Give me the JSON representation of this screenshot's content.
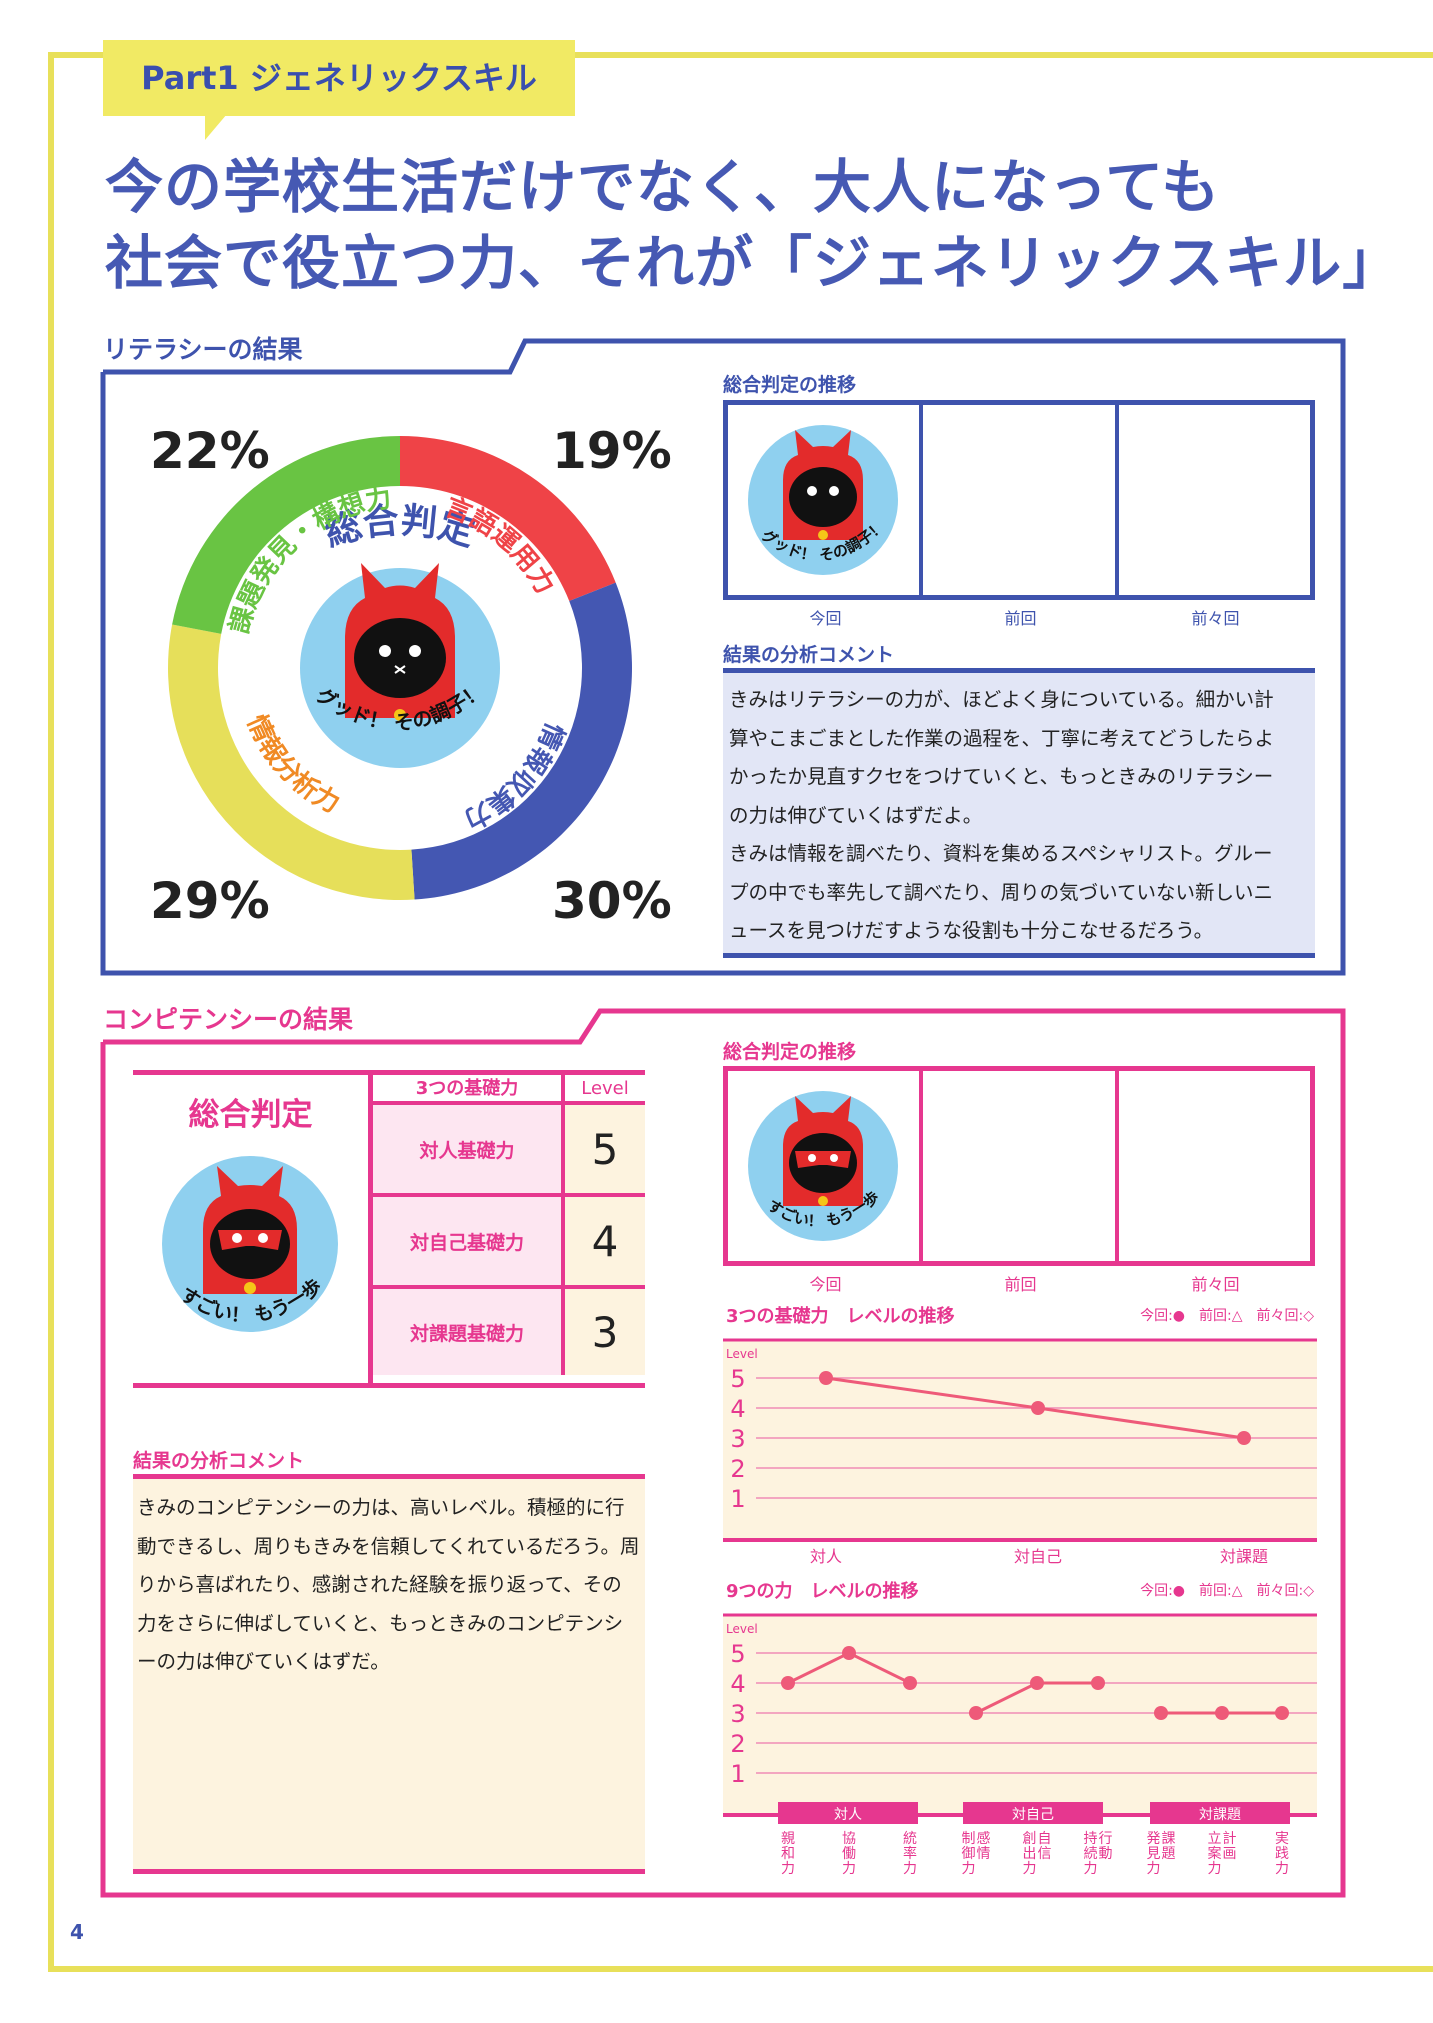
{
  "page": {
    "tab_label": "Part1 ジェネリックスキル",
    "headline_line1": "今の学校生活だけでなく、大人になっても",
    "headline_line2": "社会で役立つ力、それが「ジェネリックスキル」",
    "page_number": "4"
  },
  "colors": {
    "frame_yellow": "#e8e05a",
    "literacy_blue": "#3e53ad",
    "competency_pink": "#e6378f",
    "donut_green": "#69c443",
    "donut_red": "#ef4347",
    "donut_blue": "#4457b2",
    "donut_yellow": "#e6df5a"
  },
  "literacy": {
    "section_title": "リテラシーの結果",
    "donut_center": "総合判定",
    "mascot_caption": "グッド！ その調子！",
    "segments": [
      {
        "label": "言語運用力",
        "percent": "19%",
        "value": 19
      },
      {
        "label": "情報収集力",
        "percent": "30%",
        "value": 30
      },
      {
        "label": "情報分析力",
        "percent": "29%",
        "value": 29
      },
      {
        "label": "課題発見・構想力",
        "percent": "22%",
        "value": 22
      }
    ],
    "trend_title": "総合判定の推移",
    "trend_caption": "グッド！ その調子！",
    "trend_labels": [
      "今回",
      "前回",
      "前々回"
    ],
    "comment_title": "結果の分析コメント",
    "comment_lines": [
      "きみはリテラシーの力が、ほどよく身についている。細かい計",
      "算やこまごまとした作業の過程を、丁寧に考えてどうしたらよ",
      "かったか見直すクセをつけていくと、もっときみのリテラシー",
      "の力は伸びていくはずだよ。",
      "きみは情報を調べたり、資料を集めるスペシャリスト。グルー",
      "プの中でも率先して調べたり、周りの気づいていない新しいニ",
      "ュースを見つけだすような役割も十分こなせるだろう。"
    ]
  },
  "competency": {
    "section_title": "コンピテンシーの結果",
    "overall_title": "総合判定",
    "mascot_caption": "すごい！ もう一歩",
    "table_headers": [
      "3つの基礎力",
      "Level"
    ],
    "rows": [
      {
        "name": "対人基礎力",
        "level": "5"
      },
      {
        "name": "対自己基礎力",
        "level": "4"
      },
      {
        "name": "対課題基礎力",
        "level": "3"
      }
    ],
    "comment_title": "結果の分析コメント",
    "comment_lines": [
      "きみのコンピテンシーの力は、高いレベル。積極的に行",
      "動できるし、周りもきみを信頼してくれているだろう。周",
      "りから喜ばれたり、感謝された経験を振り返って、その",
      "力をさらに伸ばしていくと、もっときみのコンピテンシ",
      "ーの力は伸びていくはずだ。"
    ],
    "trend_title": "総合判定の推移",
    "trend_caption": "すごい！ もう一歩",
    "trend_labels": [
      "今回",
      "前回",
      "前々回"
    ]
  },
  "chart_data": [
    {
      "type": "pie",
      "title": "総合判定",
      "categories": [
        "言語運用力",
        "情報収集力",
        "情報分析力",
        "課題発見・構想力"
      ],
      "values": [
        19,
        30,
        29,
        22
      ]
    },
    {
      "type": "line",
      "title": "3つの基礎力　レベルの推移",
      "legend": "今回:●　前回:△　前々回:◇",
      "ylabel": "Level",
      "ylim": [
        1,
        5
      ],
      "yticks": [
        "1",
        "2",
        "3",
        "4",
        "5"
      ],
      "categories": [
        "対人",
        "対自己",
        "対課題"
      ],
      "series": [
        {
          "name": "今回",
          "values": [
            5,
            4,
            3
          ]
        }
      ]
    },
    {
      "type": "line",
      "title": "9つの力　レベルの推移",
      "legend": "今回:●　前回:△　前々回:◇",
      "ylabel": "Level",
      "ylim": [
        1,
        5
      ],
      "yticks": [
        "1",
        "2",
        "3",
        "4",
        "5"
      ],
      "groups": [
        "対人",
        "対自己",
        "対課題"
      ],
      "categories": [
        "親和力",
        "協働力",
        "統率力",
        "感情制御力",
        "自信創出力",
        "行動持続力",
        "課題発見力",
        "計画立案力",
        "実践力"
      ],
      "series": [
        {
          "name": "今回",
          "values": [
            4,
            5,
            4,
            3,
            4,
            4,
            3,
            3,
            3
          ]
        }
      ]
    }
  ]
}
